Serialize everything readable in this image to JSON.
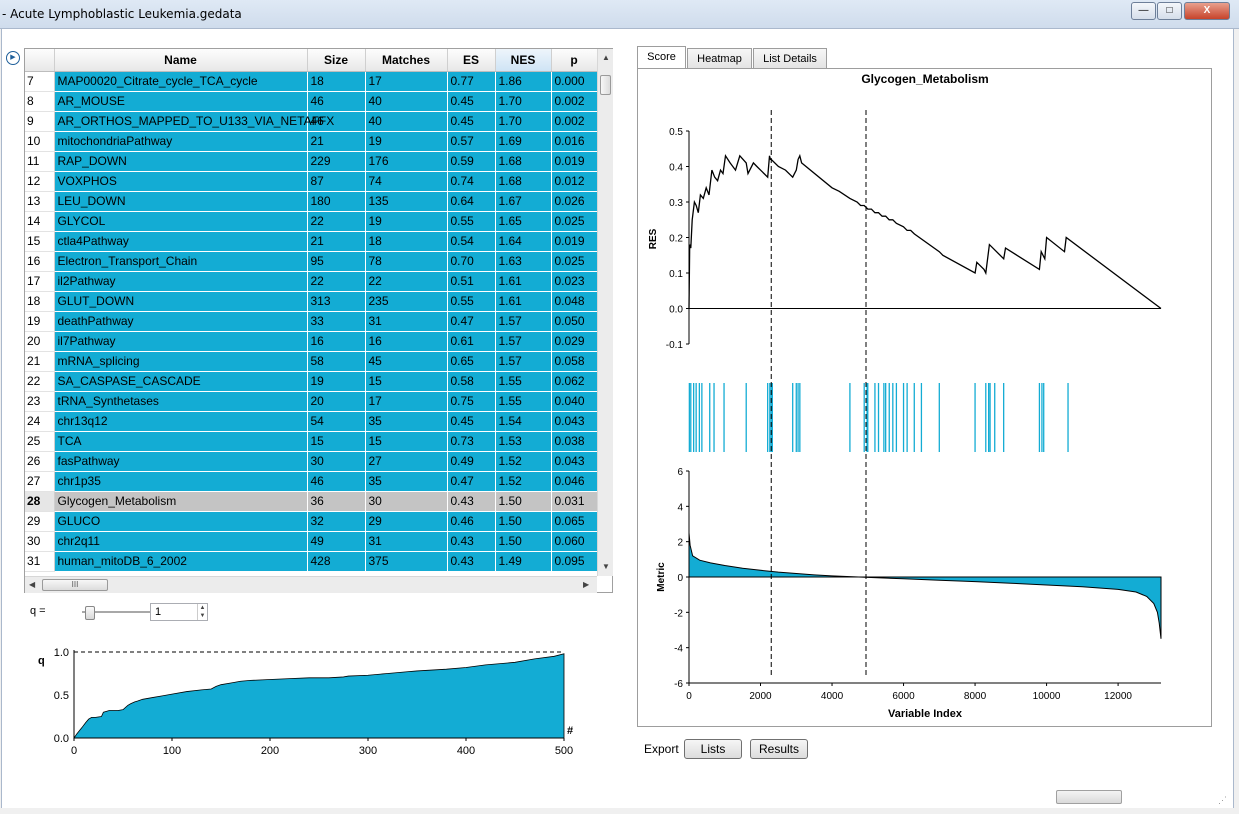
{
  "window": {
    "title": "- Acute Lymphoblastic Leukemia.gedata",
    "btn_min": "—",
    "btn_max": "□",
    "btn_close": "X"
  },
  "table": {
    "columns": [
      "Name",
      "Size",
      "Matches",
      "ES",
      "NES",
      "p"
    ],
    "sorted_column": "NES",
    "selected_row": 28,
    "rows": [
      {
        "n": 7,
        "name": "MAP00020_Citrate_cycle_TCA_cycle",
        "size": "18",
        "matches": "17",
        "es": "0.77",
        "nes": "1.86",
        "p": "0.000"
      },
      {
        "n": 8,
        "name": "AR_MOUSE",
        "size": "46",
        "matches": "40",
        "es": "0.45",
        "nes": "1.70",
        "p": "0.002"
      },
      {
        "n": 9,
        "name": "AR_ORTHOS_MAPPED_TO_U133_VIA_NETAFFX",
        "size": "46",
        "matches": "40",
        "es": "0.45",
        "nes": "1.70",
        "p": "0.002"
      },
      {
        "n": 10,
        "name": "mitochondriaPathway",
        "size": "21",
        "matches": "19",
        "es": "0.57",
        "nes": "1.69",
        "p": "0.016"
      },
      {
        "n": 11,
        "name": "RAP_DOWN",
        "size": "229",
        "matches": "176",
        "es": "0.59",
        "nes": "1.68",
        "p": "0.019"
      },
      {
        "n": 12,
        "name": "VOXPHOS",
        "size": "87",
        "matches": "74",
        "es": "0.74",
        "nes": "1.68",
        "p": "0.012"
      },
      {
        "n": 13,
        "name": "LEU_DOWN",
        "size": "180",
        "matches": "135",
        "es": "0.64",
        "nes": "1.67",
        "p": "0.026"
      },
      {
        "n": 14,
        "name": "GLYCOL",
        "size": "22",
        "matches": "19",
        "es": "0.55",
        "nes": "1.65",
        "p": "0.025"
      },
      {
        "n": 15,
        "name": "ctla4Pathway",
        "size": "21",
        "matches": "18",
        "es": "0.54",
        "nes": "1.64",
        "p": "0.019"
      },
      {
        "n": 16,
        "name": "Electron_Transport_Chain",
        "size": "95",
        "matches": "78",
        "es": "0.70",
        "nes": "1.63",
        "p": "0.025"
      },
      {
        "n": 17,
        "name": "il2Pathway",
        "size": "22",
        "matches": "22",
        "es": "0.51",
        "nes": "1.61",
        "p": "0.023"
      },
      {
        "n": 18,
        "name": "GLUT_DOWN",
        "size": "313",
        "matches": "235",
        "es": "0.55",
        "nes": "1.61",
        "p": "0.048"
      },
      {
        "n": 19,
        "name": "deathPathway",
        "size": "33",
        "matches": "31",
        "es": "0.47",
        "nes": "1.57",
        "p": "0.050"
      },
      {
        "n": 20,
        "name": "il7Pathway",
        "size": "16",
        "matches": "16",
        "es": "0.61",
        "nes": "1.57",
        "p": "0.029"
      },
      {
        "n": 21,
        "name": "mRNA_splicing",
        "size": "58",
        "matches": "45",
        "es": "0.65",
        "nes": "1.57",
        "p": "0.058"
      },
      {
        "n": 22,
        "name": "SA_CASPASE_CASCADE",
        "size": "19",
        "matches": "15",
        "es": "0.58",
        "nes": "1.55",
        "p": "0.062"
      },
      {
        "n": 23,
        "name": "tRNA_Synthetases",
        "size": "20",
        "matches": "17",
        "es": "0.75",
        "nes": "1.55",
        "p": "0.040"
      },
      {
        "n": 24,
        "name": "chr13q12",
        "size": "54",
        "matches": "35",
        "es": "0.45",
        "nes": "1.54",
        "p": "0.043"
      },
      {
        "n": 25,
        "name": "TCA",
        "size": "15",
        "matches": "15",
        "es": "0.73",
        "nes": "1.53",
        "p": "0.038"
      },
      {
        "n": 26,
        "name": "fasPathway",
        "size": "30",
        "matches": "27",
        "es": "0.49",
        "nes": "1.52",
        "p": "0.043"
      },
      {
        "n": 27,
        "name": "chr1p35",
        "size": "46",
        "matches": "35",
        "es": "0.47",
        "nes": "1.52",
        "p": "0.046"
      },
      {
        "n": 28,
        "name": "Glycogen_Metabolism",
        "size": "36",
        "matches": "30",
        "es": "0.43",
        "nes": "1.50",
        "p": "0.031"
      },
      {
        "n": 29,
        "name": "GLUCO",
        "size": "32",
        "matches": "29",
        "es": "0.46",
        "nes": "1.50",
        "p": "0.065"
      },
      {
        "n": 30,
        "name": "chr2q11",
        "size": "49",
        "matches": "31",
        "es": "0.43",
        "nes": "1.50",
        "p": "0.060"
      },
      {
        "n": 31,
        "name": "human_mitoDB_6_2002",
        "size": "428",
        "matches": "375",
        "es": "0.43",
        "nes": "1.49",
        "p": "0.095"
      }
    ],
    "hscroll_thumb_label": "III"
  },
  "q_control": {
    "label": "q =",
    "value": "1"
  },
  "q_chart": {
    "type": "area",
    "ylabel": "q",
    "xlabel": "#",
    "ylim": [
      0,
      1
    ],
    "xlim": [
      0,
      500
    ],
    "yticks": [
      "0.0",
      "0.5",
      "1.0"
    ],
    "xticks": [
      "0",
      "100",
      "200",
      "300",
      "400",
      "500"
    ],
    "x": [
      0,
      3,
      8,
      12,
      15,
      18,
      22,
      28,
      30,
      33,
      36,
      45,
      50,
      55,
      58,
      62,
      65,
      70,
      80,
      90,
      100,
      115,
      130,
      140,
      145,
      150,
      160,
      170,
      180,
      200,
      220,
      240,
      260,
      275,
      280,
      300,
      320,
      340,
      350,
      380,
      400,
      420,
      450,
      470,
      490,
      500
    ],
    "y": [
      0.0,
      0.05,
      0.12,
      0.18,
      0.22,
      0.24,
      0.24,
      0.25,
      0.3,
      0.31,
      0.32,
      0.32,
      0.33,
      0.38,
      0.4,
      0.42,
      0.43,
      0.45,
      0.47,
      0.49,
      0.51,
      0.54,
      0.56,
      0.57,
      0.6,
      0.62,
      0.64,
      0.66,
      0.67,
      0.68,
      0.69,
      0.7,
      0.7,
      0.71,
      0.72,
      0.73,
      0.75,
      0.77,
      0.78,
      0.8,
      0.82,
      0.85,
      0.88,
      0.92,
      0.95,
      0.98
    ],
    "reference_line": 1.0,
    "color": "#13acd4"
  },
  "tabs": [
    "Score",
    "Heatmap",
    "List Details"
  ],
  "active_tab": "Score",
  "chart_data": {
    "type": "line",
    "title": "Glycogen_Metabolism",
    "res": {
      "ylabel": "RES",
      "ylim": [
        -0.1,
        0.5
      ],
      "yticks": [
        "0.5",
        "0.4",
        "0.3",
        "0.2",
        "0.1",
        "0.0",
        "-0.1"
      ],
      "x": [
        0,
        20,
        50,
        90,
        150,
        200,
        260,
        320,
        400,
        480,
        560,
        640,
        720,
        800,
        880,
        950,
        1020,
        1150,
        1300,
        1420,
        1600,
        1650,
        1800,
        1900,
        2000,
        2100,
        2200,
        2250,
        2280,
        2300,
        2500,
        2700,
        2900,
        2950,
        3000,
        3050,
        3100,
        3150,
        4000,
        4200,
        4500,
        4700,
        4800,
        4900,
        5000,
        5100,
        5200,
        5300,
        5400,
        5500,
        5600,
        5700,
        5800,
        6000,
        6100,
        6200,
        6300,
        7000,
        7100,
        8000,
        8050,
        8250,
        8300,
        8400,
        8800,
        8850,
        9800,
        9850,
        9950,
        10000,
        10500,
        10550,
        13200
      ],
      "y": [
        0.0,
        0.18,
        0.17,
        0.25,
        0.3,
        0.29,
        0.27,
        0.32,
        0.31,
        0.34,
        0.32,
        0.39,
        0.37,
        0.36,
        0.39,
        0.38,
        0.43,
        0.41,
        0.39,
        0.43,
        0.41,
        0.38,
        0.41,
        0.4,
        0.39,
        0.38,
        0.37,
        0.43,
        0.42,
        0.42,
        0.4,
        0.39,
        0.37,
        0.38,
        0.39,
        0.42,
        0.43,
        0.41,
        0.34,
        0.33,
        0.31,
        0.3,
        0.29,
        0.29,
        0.28,
        0.28,
        0.27,
        0.27,
        0.26,
        0.26,
        0.25,
        0.25,
        0.24,
        0.23,
        0.22,
        0.22,
        0.21,
        0.16,
        0.15,
        0.1,
        0.13,
        0.11,
        0.1,
        0.18,
        0.14,
        0.17,
        0.11,
        0.16,
        0.14,
        0.2,
        0.16,
        0.2,
        0.0
      ]
    },
    "hits": [
      10,
      50,
      130,
      200,
      290,
      360,
      580,
      700,
      980,
      1600,
      2200,
      2260,
      2300,
      2330,
      2900,
      3000,
      3050,
      3100,
      4500,
      4900,
      4980,
      5000,
      5200,
      5300,
      5450,
      5500,
      5600,
      5700,
      5800,
      6000,
      6100,
      6300,
      6500,
      7000,
      8000,
      8300,
      8380,
      8420,
      8550,
      8800,
      9800,
      9870,
      9920,
      10600
    ],
    "dashed_lines_x": [
      2300,
      4950
    ],
    "metric": {
      "ylabel": "Metric",
      "ylim": [
        -6,
        6
      ],
      "yticks": [
        "6",
        "4",
        "2",
        "0",
        "-2",
        "-4",
        "-6"
      ],
      "x": [
        0,
        30,
        100,
        300,
        600,
        1000,
        1500,
        2000,
        2500,
        3000,
        3500,
        4000,
        4500,
        5000,
        6000,
        7000,
        8000,
        9000,
        10000,
        11000,
        12000,
        12500,
        12800,
        13000,
        13100,
        13150,
        13200
      ],
      "y": [
        2.5,
        1.8,
        1.2,
        0.95,
        0.8,
        0.65,
        0.5,
        0.38,
        0.28,
        0.2,
        0.12,
        0.06,
        0.02,
        -0.02,
        -0.1,
        -0.18,
        -0.26,
        -0.35,
        -0.45,
        -0.55,
        -0.7,
        -0.85,
        -1.1,
        -1.5,
        -2.0,
        -2.6,
        -3.5
      ]
    },
    "xlabel": "Variable Index",
    "xlim": [
      0,
      13200
    ],
    "xticks": [
      "0",
      "2000",
      "4000",
      "6000",
      "8000",
      "10000",
      "12000"
    ],
    "color": "#13acd4"
  },
  "export": {
    "label": "Export",
    "lists_label": "Lists",
    "results_label": "Results"
  }
}
